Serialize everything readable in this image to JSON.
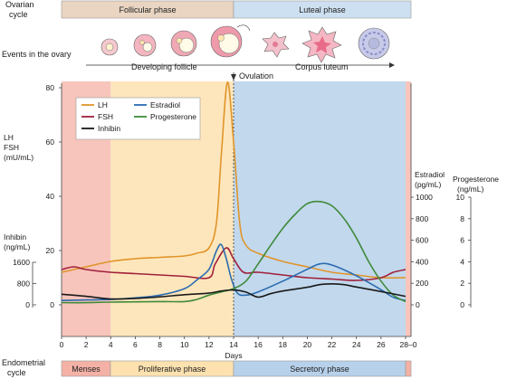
{
  "top": {
    "ovarian_cycle_label_line1": "Ovarian",
    "ovarian_cycle_label_line2": "cycle",
    "follicular_phase": "Follicular phase",
    "luteal_phase": "Luteal phase",
    "events_label": "Events in the ovary",
    "developing_follicle": "Developing follicle",
    "corpus_luteum": "Corpus luteum",
    "ovulation": "Ovulation"
  },
  "bottom": {
    "endometrial_cycle_line1": "Endometrial",
    "endometrial_cycle_line2": "cycle",
    "menses": "Menses",
    "proliferative_phase": "Proliferative phase",
    "secretory_phase": "Secretory phase"
  },
  "colors": {
    "menses": "#f4b1a6",
    "proliferative": "#fde2b0",
    "secretory": "#b7d1ea",
    "follicular_bar": "#e9d5c2",
    "luteal_bar": "#cde0f1",
    "lh": "#e0952a",
    "fsh": "#a0203a",
    "inhibin": "#1a1a1a",
    "estradiol": "#2a6bb0",
    "progesterone": "#3f8a3a",
    "follicle_pink": "#f0a8b4",
    "corpus_pink": "#f08fa6"
  },
  "chart_data": {
    "type": "line",
    "xlabel": "Days",
    "x_ticks": [
      "0",
      "2",
      "4",
      "6",
      "8",
      "10",
      "12",
      "14",
      "16",
      "18",
      "20",
      "22",
      "24",
      "26",
      "28–0"
    ],
    "axes": {
      "lh_fsh": {
        "label_line1": "LH",
        "label_line2": "FSH",
        "label_line3": "(mU/mL)",
        "ticks": [
          "0",
          "20",
          "40",
          "60",
          "80"
        ],
        "ylim": [
          0,
          80
        ]
      },
      "inhibin": {
        "label_line1": "Inhibin",
        "label_line2": "(ng/mL)",
        "ticks": [
          "0",
          "800",
          "1600"
        ],
        "ylim": [
          0,
          1600
        ]
      },
      "estradiol": {
        "label_line1": "Estradiol",
        "label_line2": "(pg/mL)",
        "ticks": [
          "0",
          "200",
          "400",
          "600",
          "800",
          "1000"
        ],
        "ylim": [
          0,
          1000
        ]
      },
      "progesterone": {
        "label_line1": "Progesterone",
        "label_line2": "(ng/mL)",
        "ticks": [
          "0",
          "2",
          "4",
          "6",
          "8",
          "10"
        ],
        "ylim": [
          0,
          10
        ]
      }
    },
    "legend": [
      {
        "name": "LH",
        "color": "#e0952a"
      },
      {
        "name": "Estradiol",
        "color": "#2a6bb0"
      },
      {
        "name": "FSH",
        "color": "#a0203a"
      },
      {
        "name": "Progesterone",
        "color": "#3f8a3a"
      },
      {
        "name": "Inhibin",
        "color": "#1a1a1a"
      }
    ],
    "series": [
      {
        "name": "LH",
        "axis": "lh_fsh",
        "color": "#e0952a",
        "points": [
          [
            0,
            12
          ],
          [
            2,
            14
          ],
          [
            4,
            16
          ],
          [
            6,
            17
          ],
          [
            8,
            17.5
          ],
          [
            10,
            18
          ],
          [
            11,
            19
          ],
          [
            12,
            21
          ],
          [
            12.6,
            30
          ],
          [
            13,
            55
          ],
          [
            13.5,
            82
          ],
          [
            14,
            60
          ],
          [
            14.5,
            30
          ],
          [
            15,
            22
          ],
          [
            16,
            19
          ],
          [
            18,
            16
          ],
          [
            20,
            14
          ],
          [
            22,
            12
          ],
          [
            24,
            11
          ],
          [
            26,
            10
          ],
          [
            28,
            10
          ]
        ]
      },
      {
        "name": "FSH",
        "axis": "lh_fsh",
        "color": "#a0203a",
        "points": [
          [
            0,
            13
          ],
          [
            1,
            14
          ],
          [
            2,
            13
          ],
          [
            4,
            12
          ],
          [
            6,
            11.5
          ],
          [
            8,
            11
          ],
          [
            10,
            10.5
          ],
          [
            12,
            10
          ],
          [
            12.5,
            15
          ],
          [
            13.4,
            21
          ],
          [
            14,
            17
          ],
          [
            14.8,
            12
          ],
          [
            16,
            12
          ],
          [
            18,
            11
          ],
          [
            20,
            10
          ],
          [
            22,
            9.5
          ],
          [
            24,
            9
          ],
          [
            26,
            10
          ],
          [
            27,
            12
          ],
          [
            28,
            13
          ]
        ]
      },
      {
        "name": "Estradiol",
        "axis": "estradiol",
        "color": "#2a6bb0",
        "points": [
          [
            0,
            40
          ],
          [
            2,
            45
          ],
          [
            4,
            50
          ],
          [
            6,
            65
          ],
          [
            8,
            90
          ],
          [
            10,
            150
          ],
          [
            11,
            230
          ],
          [
            12,
            330
          ],
          [
            12.6,
            500
          ],
          [
            13,
            560
          ],
          [
            13.4,
            430
          ],
          [
            13.8,
            250
          ],
          [
            14.3,
            110
          ],
          [
            15,
            90
          ],
          [
            16,
            120
          ],
          [
            18,
            220
          ],
          [
            20,
            330
          ],
          [
            21,
            380
          ],
          [
            22,
            370
          ],
          [
            24,
            270
          ],
          [
            26,
            140
          ],
          [
            27,
            70
          ],
          [
            28,
            40
          ]
        ]
      },
      {
        "name": "Progesterone",
        "axis": "progesterone",
        "color": "#3f8a3a",
        "points": [
          [
            0,
            0.2
          ],
          [
            2,
            0.2
          ],
          [
            4,
            0.25
          ],
          [
            8,
            0.3
          ],
          [
            10,
            0.3
          ],
          [
            11,
            0.5
          ],
          [
            12,
            0.9
          ],
          [
            13,
            1.2
          ],
          [
            14,
            1.5
          ],
          [
            15,
            2.2
          ],
          [
            16,
            3.8
          ],
          [
            17,
            5.5
          ],
          [
            18,
            7.1
          ],
          [
            19,
            8.4
          ],
          [
            20,
            9.4
          ],
          [
            21,
            9.6
          ],
          [
            22,
            9.2
          ],
          [
            23,
            8.0
          ],
          [
            24,
            6.2
          ],
          [
            25,
            4.0
          ],
          [
            26,
            2.2
          ],
          [
            27,
            0.9
          ],
          [
            28,
            0.3
          ]
        ]
      },
      {
        "name": "Inhibin",
        "axis": "inhibin",
        "color": "#1a1a1a",
        "points": [
          [
            0,
            400
          ],
          [
            2,
            320
          ],
          [
            4,
            220
          ],
          [
            6,
            240
          ],
          [
            8,
            300
          ],
          [
            10,
            380
          ],
          [
            12,
            440
          ],
          [
            13,
            520
          ],
          [
            14,
            560
          ],
          [
            15,
            480
          ],
          [
            16,
            290
          ],
          [
            17,
            420
          ],
          [
            18,
            520
          ],
          [
            20,
            660
          ],
          [
            21,
            760
          ],
          [
            22,
            790
          ],
          [
            23,
            760
          ],
          [
            24,
            670
          ],
          [
            26,
            500
          ],
          [
            28,
            320
          ]
        ]
      }
    ]
  }
}
